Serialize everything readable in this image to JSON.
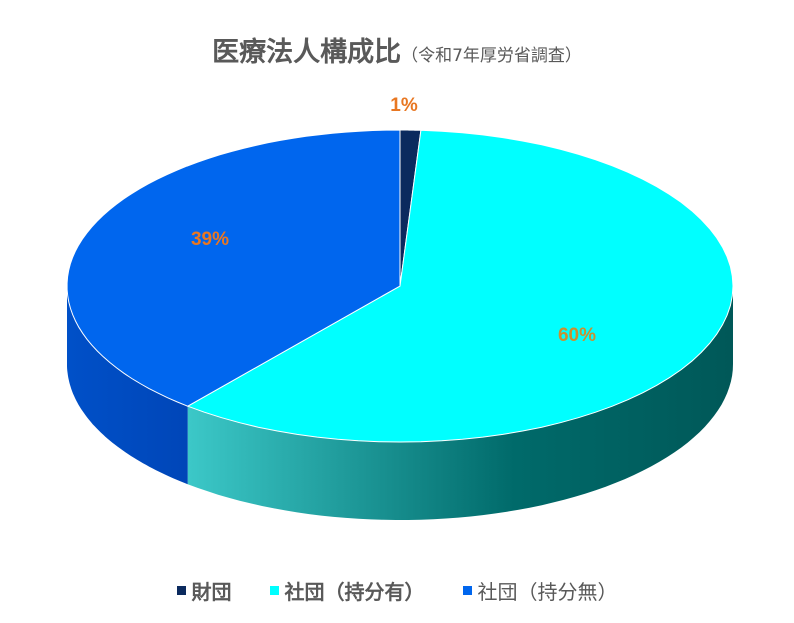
{
  "chart_data": {
    "type": "pie",
    "title": "医療法人構成比",
    "subtitle": "（令和7年厚労省調査）",
    "three_d": true,
    "legend_position": "bottom",
    "slices": [
      {
        "name": "財団",
        "value": 1,
        "label": "1%",
        "color": "#0b2a5e",
        "side_color": "#0a2050"
      },
      {
        "name": "社団（持分有）",
        "value": 60,
        "label": "60%",
        "color": "#00ffff",
        "side_color": "#1fb8b8",
        "side_dark": "#005f5f"
      },
      {
        "name": "社団（持分無）",
        "value": 39,
        "label": "39%",
        "color": "#0066ee",
        "side_color": "#0058dd",
        "side_dark": "#0040aa"
      }
    ],
    "label_colors": [
      "#e87722",
      "#c99030",
      "#e87722"
    ]
  }
}
